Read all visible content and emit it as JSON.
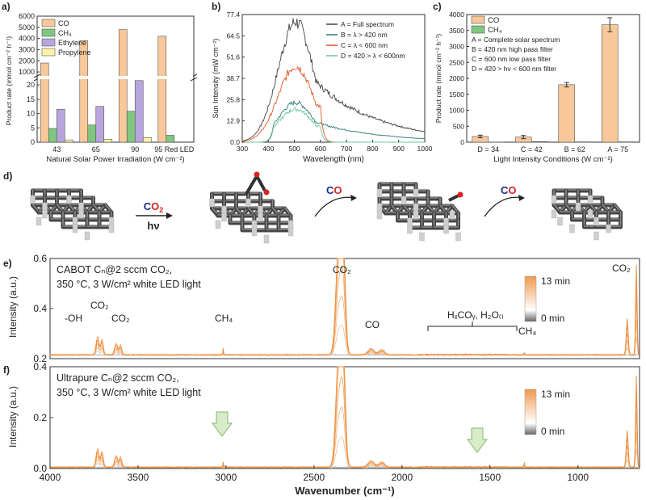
{
  "panel_labels": {
    "a": "a)",
    "b": "b)",
    "c": "c)",
    "d": "d)",
    "e": "e)",
    "f": "f)"
  },
  "chart_data": [
    {
      "id": "a",
      "type": "bar",
      "xlabel": "Natural Solar Power Irradiation (W cm⁻²)",
      "ylabel": "Product rate (mmol cm⁻² h⁻¹)",
      "categories": [
        "43",
        "65",
        "90",
        "95 Red LED"
      ],
      "series": [
        {
          "name": "CO",
          "color": "#f8c89a",
          "values": [
            1800,
            3800,
            4800,
            4200
          ]
        },
        {
          "name": "CH₄",
          "color": "#7fc77f",
          "values": [
            4.8,
            6.0,
            10.8,
            2.4
          ]
        },
        {
          "name": "Ethylene",
          "color": "#b9a5dd",
          "values": [
            11.5,
            12.5,
            21.5,
            null
          ]
        },
        {
          "name": "Propylene",
          "color": "#fdf2a9",
          "values": [
            0.8,
            1.0,
            1.6,
            null
          ]
        }
      ],
      "yticks_lower": [
        "0",
        "5",
        "10",
        "15",
        "20"
      ],
      "yticks_upper": [
        "1000",
        "2000",
        "3000",
        "4000",
        "5000",
        "6000"
      ],
      "legend": "top-left"
    },
    {
      "id": "b",
      "type": "line",
      "xlabel": "Wavelength (nm)",
      "ylabel": "Sun Intensity (mW cm⁻²)",
      "xlim": [
        300,
        1000
      ],
      "ylim": [
        0,
        77.4
      ],
      "xticks": [
        "300",
        "400",
        "500",
        "600",
        "700",
        "800",
        "900",
        "1000"
      ],
      "yticks": [
        "0.0",
        "12.9",
        "25.8",
        "38.7",
        "51.6",
        "64.5",
        "77.4"
      ],
      "series": [
        {
          "name": "A = Full spectrum",
          "color": "#444444",
          "peak": 73,
          "cutoff_low": 300,
          "cutoff_high": 1000
        },
        {
          "name": "B = λ > 420 nm",
          "color": "#2f7f74",
          "peak": 24,
          "cutoff_low": 420,
          "cutoff_high": 1000
        },
        {
          "name": "C = λ < 600 nm",
          "color": "#e3562a",
          "peak": 46,
          "cutoff_low": 300,
          "cutoff_high": 600
        },
        {
          "name": "D = 420 > λ < 600nm",
          "color": "#6dc59b",
          "peak": 20,
          "cutoff_low": 420,
          "cutoff_high": 600
        }
      ],
      "legend": "top-right"
    },
    {
      "id": "c",
      "type": "bar",
      "xlabel": "Light Intensity Conditions (W cm⁻²)",
      "ylabel": "Product rate (mmol cm⁻² h⁻¹)",
      "ylim": [
        0,
        4000
      ],
      "yticks": [
        "0",
        "500",
        "1000",
        "1500",
        "2000",
        "2500",
        "3000",
        "3500",
        "4000"
      ],
      "categories": [
        "D = 34",
        "C = 42",
        "B = 62",
        "A = 75"
      ],
      "series": [
        {
          "name": "CO",
          "color": "#f8c89a",
          "values": [
            180,
            160,
            1800,
            3680
          ],
          "errors": [
            40,
            50,
            70,
            220
          ]
        },
        {
          "name": "CH₄",
          "color": "#7fc77f",
          "values": [
            5,
            20,
            10,
            10
          ]
        }
      ],
      "notes": [
        "A = Complete solar spectrum",
        "B = 420 nm high pass filter",
        "C = 600 nm low pass filter",
        "D = 420 > hv < 600 nm filter"
      ],
      "legend": "top-left"
    },
    {
      "id": "e",
      "type": "line",
      "xlabel": "",
      "ylabel": "Intensity (a.u.)",
      "xlim": [
        4000,
        650
      ],
      "ylim": [
        0.2,
        0.6
      ],
      "yticks": [
        "0.2",
        "0.4",
        "0.6"
      ],
      "title_line1": "CABOT Cₙ@2 sccm CO₂,",
      "title_line2": "350 °C, 3 W/cm² white LED light",
      "colorbar": {
        "max": "13 min",
        "min": "0 min"
      },
      "annotations": [
        "-OH",
        "CO₂",
        "CO₂",
        "CH₄",
        "CO₂",
        "CO",
        "HₓCOᵧ, H₂O₍₎",
        "CH₄",
        "CO₂"
      ]
    },
    {
      "id": "f",
      "type": "line",
      "xlabel": "Wavenumber (cm⁻¹)",
      "ylabel": "Intensity (a.u.)",
      "xlim": [
        4000,
        650
      ],
      "ylim": [
        0.0,
        0.4
      ],
      "yticks": [
        "0.0",
        "0.2",
        "0.4"
      ],
      "xticks": [
        "4000",
        "3500",
        "3000",
        "2500",
        "2000",
        "1500",
        "1000"
      ],
      "title_line1": "Ultrapure Cₙ@2 sccm CO₂,",
      "title_line2": "350 °C, 3 W/cm² white LED light",
      "colorbar": {
        "max": "13 min",
        "min": "0 min"
      }
    }
  ],
  "scheme_d": {
    "reagent": "CO₂",
    "condition": "hν",
    "product1": "CO",
    "product2": "CO"
  }
}
